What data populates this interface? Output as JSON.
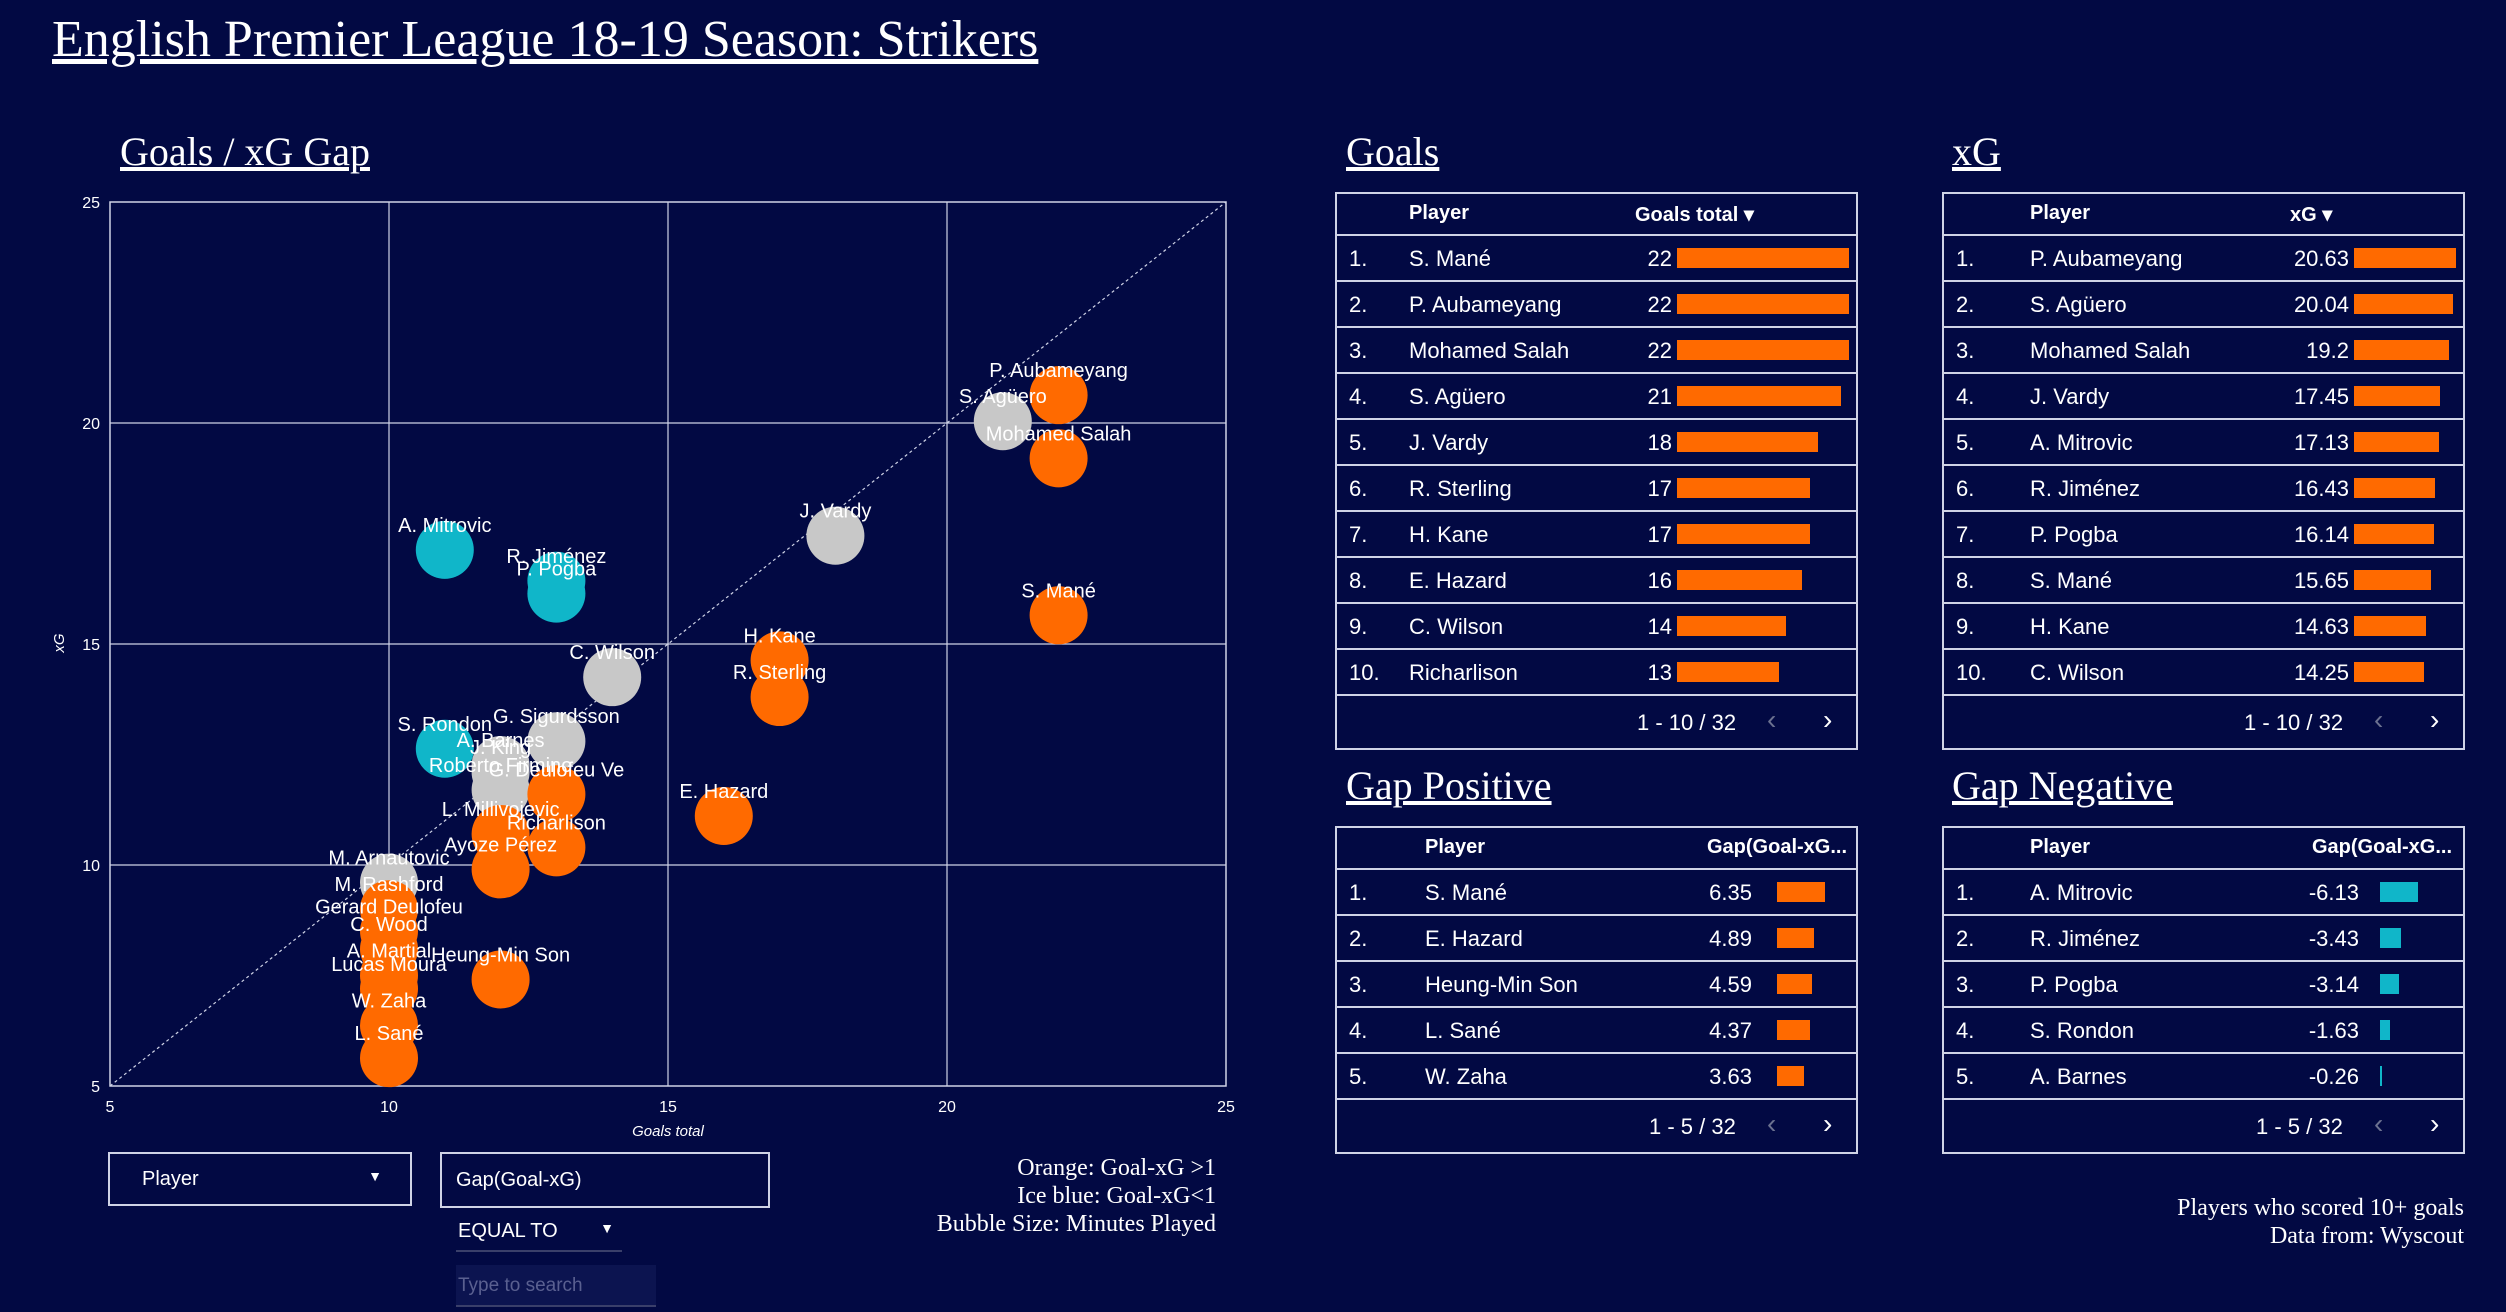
{
  "title": "English Premier League 18-19 Season: Strikers",
  "scatter": {
    "section_title": "Goals / xG Gap",
    "xlabel": "Goals total",
    "ylabel": "xG",
    "xticks": [
      "5",
      "10",
      "15",
      "20",
      "25"
    ],
    "yticks": [
      "25",
      "20",
      "15",
      "10",
      "5"
    ]
  },
  "chart_data": {
    "type": "scatter",
    "title": "Goals / xG Gap",
    "xlabel": "Goals total",
    "ylabel": "xG",
    "xlim": [
      5,
      25
    ],
    "ylim": [
      5,
      25
    ],
    "diagonal_reference": true,
    "grid": true,
    "colors": {
      "positive": "#ff6a00",
      "neutral": "#c8c8c8",
      "negative": "#10b6c9"
    },
    "points": [
      {
        "name": "P. Aubameyang",
        "x": 22,
        "y": 20.63,
        "group": "positive"
      },
      {
        "name": "S. Agüero",
        "x": 21,
        "y": 20.04,
        "group": "neutral"
      },
      {
        "name": "Mohamed Salah",
        "x": 22,
        "y": 19.2,
        "group": "positive"
      },
      {
        "name": "J. Vardy",
        "x": 18,
        "y": 17.45,
        "group": "neutral"
      },
      {
        "name": "A. Mitrovic",
        "x": 11,
        "y": 17.13,
        "group": "negative"
      },
      {
        "name": "R. Jiménez",
        "x": 13,
        "y": 16.43,
        "group": "negative"
      },
      {
        "name": "P. Pogba",
        "x": 13,
        "y": 16.14,
        "group": "negative"
      },
      {
        "name": "S. Mané",
        "x": 22,
        "y": 15.65,
        "group": "positive"
      },
      {
        "name": "H. Kane",
        "x": 17,
        "y": 14.63,
        "group": "positive"
      },
      {
        "name": "C. Wilson",
        "x": 14,
        "y": 14.25,
        "group": "neutral"
      },
      {
        "name": "R. Sterling",
        "x": 17,
        "y": 13.8,
        "group": "positive"
      },
      {
        "name": "S. Rondon",
        "x": 11,
        "y": 12.63,
        "group": "negative"
      },
      {
        "name": "A. Barnes",
        "x": 12,
        "y": 12.26,
        "group": "neutral"
      },
      {
        "name": "G. Sigurdsson",
        "x": 13,
        "y": 12.8,
        "group": "neutral"
      },
      {
        "name": "Roberto Firmino",
        "x": 12,
        "y": 11.7,
        "group": "neutral"
      },
      {
        "name": "J. King",
        "x": 12,
        "y": 12.1,
        "group": "neutral"
      },
      {
        "name": "G. Deulofeu Ve",
        "x": 13,
        "y": 11.6,
        "group": "positive"
      },
      {
        "name": "E. Hazard",
        "x": 16,
        "y": 11.11,
        "group": "positive"
      },
      {
        "name": "L. Millivojevic",
        "x": 12,
        "y": 10.7,
        "group": "positive"
      },
      {
        "name": "Richarlison",
        "x": 13,
        "y": 10.4,
        "group": "positive"
      },
      {
        "name": "Ayoze Pérez",
        "x": 12,
        "y": 9.9,
        "group": "positive"
      },
      {
        "name": "M. Arnautovic",
        "x": 10,
        "y": 9.6,
        "group": "neutral"
      },
      {
        "name": "M. Rashford",
        "x": 10,
        "y": 9.0,
        "group": "positive"
      },
      {
        "name": "Gerard Deulofeu",
        "x": 10,
        "y": 8.5,
        "group": "positive"
      },
      {
        "name": "C. Wood",
        "x": 10,
        "y": 8.1,
        "group": "positive"
      },
      {
        "name": "Heung-Min Son",
        "x": 12,
        "y": 7.41,
        "group": "positive"
      },
      {
        "name": "A. Martial",
        "x": 10,
        "y": 7.5,
        "group": "positive"
      },
      {
        "name": "Lucas Moura",
        "x": 10,
        "y": 7.2,
        "group": "positive"
      },
      {
        "name": "W. Zaha",
        "x": 10,
        "y": 6.37,
        "group": "positive"
      },
      {
        "name": "L. Sané",
        "x": 10,
        "y": 5.63,
        "group": "positive"
      }
    ]
  },
  "goals_table": {
    "section_title": "Goals",
    "col_player": "Player",
    "col_metric": "Goals total ▾",
    "max": 22,
    "rows": [
      {
        "rank": "1.",
        "player": "S. Mané",
        "value": "22"
      },
      {
        "rank": "2.",
        "player": "P. Aubameyang",
        "value": "22"
      },
      {
        "rank": "3.",
        "player": "Mohamed Salah",
        "value": "22"
      },
      {
        "rank": "4.",
        "player": "S. Agüero",
        "value": "21"
      },
      {
        "rank": "5.",
        "player": "J. Vardy",
        "value": "18"
      },
      {
        "rank": "6.",
        "player": "R. Sterling",
        "value": "17"
      },
      {
        "rank": "7.",
        "player": "H. Kane",
        "value": "17"
      },
      {
        "rank": "8.",
        "player": "E. Hazard",
        "value": "16"
      },
      {
        "rank": "9.",
        "player": "C. Wilson",
        "value": "14"
      },
      {
        "rank": "10.",
        "player": "Richarlison",
        "value": "13"
      }
    ],
    "pager": "1 - 10 / 32"
  },
  "xg_table": {
    "section_title": "xG",
    "col_player": "Player",
    "col_metric": "xG ▾",
    "max": 20.63,
    "rows": [
      {
        "rank": "1.",
        "player": "P. Aubameyang",
        "value": "20.63"
      },
      {
        "rank": "2.",
        "player": "S. Agüero",
        "value": "20.04"
      },
      {
        "rank": "3.",
        "player": "Mohamed Salah",
        "value": "19.2"
      },
      {
        "rank": "4.",
        "player": "J. Vardy",
        "value": "17.45"
      },
      {
        "rank": "5.",
        "player": "A. Mitrovic",
        "value": "17.13"
      },
      {
        "rank": "6.",
        "player": "R. Jiménez",
        "value": "16.43"
      },
      {
        "rank": "7.",
        "player": "P. Pogba",
        "value": "16.14"
      },
      {
        "rank": "8.",
        "player": "S. Mané",
        "value": "15.65"
      },
      {
        "rank": "9.",
        "player": "H. Kane",
        "value": "14.63"
      },
      {
        "rank": "10.",
        "player": "C. Wilson",
        "value": "14.25"
      }
    ],
    "pager": "1 - 10 / 32"
  },
  "gap_pos_table": {
    "section_title": "Gap Positive",
    "col_player": "Player",
    "col_metric": "Gap(Goal-xG...",
    "max": 6.35,
    "rows": [
      {
        "rank": "1.",
        "player": "S. Mané",
        "value": "6.35"
      },
      {
        "rank": "2.",
        "player": "E. Hazard",
        "value": "4.89"
      },
      {
        "rank": "3.",
        "player": "Heung-Min Son",
        "value": "4.59"
      },
      {
        "rank": "4.",
        "player": "L. Sané",
        "value": "4.37"
      },
      {
        "rank": "5.",
        "player": "W. Zaha",
        "value": "3.63"
      }
    ],
    "pager": "1 - 5 / 32"
  },
  "gap_neg_table": {
    "section_title": "Gap Negative",
    "col_player": "Player",
    "col_metric": "Gap(Goal-xG...",
    "max": 6.13,
    "rows": [
      {
        "rank": "1.",
        "player": "A. Mitrovic",
        "value": "-6.13"
      },
      {
        "rank": "2.",
        "player": "R. Jiménez",
        "value": "-3.43"
      },
      {
        "rank": "3.",
        "player": "P. Pogba",
        "value": "-3.14"
      },
      {
        "rank": "4.",
        "player": "S. Rondon",
        "value": "-1.63"
      },
      {
        "rank": "5.",
        "player": "A. Barnes",
        "value": "-0.26"
      }
    ],
    "pager": "1 - 5 / 32"
  },
  "controls": {
    "player_dropdown": "Player",
    "metric_field": "Gap(Goal-xG)",
    "operator_dropdown": "EQUAL TO",
    "search_placeholder": "Type to search"
  },
  "legend": {
    "line1": "Orange: Goal-xG >1",
    "line2": "Ice blue: Goal-xG<1",
    "line3": "Bubble Size: Minutes Played"
  },
  "footnote": {
    "line1": "Players who scored 10+ goals",
    "line2": "Data from: Wyscout"
  }
}
